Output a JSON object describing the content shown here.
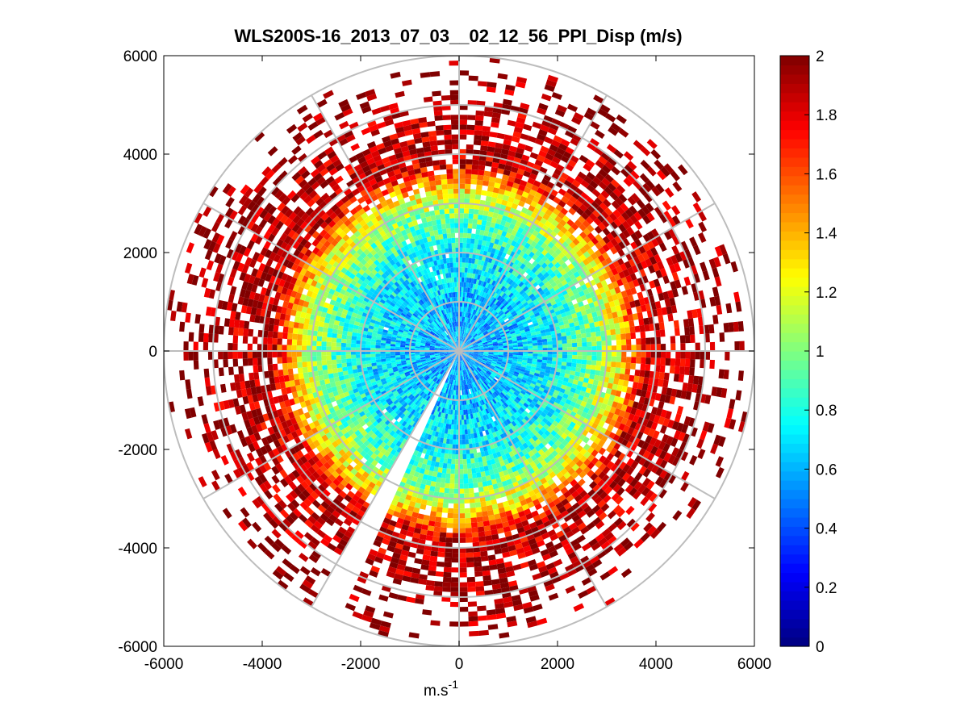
{
  "chart_data": {
    "type": "heatmap",
    "subtype": "polar-ppi",
    "title": "WLS200S-16_2013_07_03__02_12_56_PPI_Disp (m/s)",
    "xlabel": "m.s",
    "xlabel_superscript": "-1",
    "ylabel": "",
    "xlim": [
      -6000,
      6000
    ],
    "ylim": [
      -6000,
      6000
    ],
    "xticks": [
      -6000,
      -4000,
      -2000,
      0,
      2000,
      4000,
      6000
    ],
    "yticks": [
      6000,
      4000,
      2000,
      0,
      -2000,
      -4000,
      -6000
    ],
    "x_tick_labels": [
      "-6000",
      "-4000",
      "-2000",
      "0",
      "2000",
      "4000",
      "6000"
    ],
    "y_tick_labels": [
      "6000",
      "4000",
      "2000",
      "0",
      "-2000",
      "-4000",
      "-6000"
    ],
    "grid_ring_radii": [
      1000,
      2000,
      3000,
      4000,
      5000,
      6000
    ],
    "grid_spoke_step_deg": 30,
    "max_range": 6000,
    "range_gate": 100,
    "azimuth_step_deg": 2,
    "radial_profile": [
      {
        "range": 0,
        "value": 0.55
      },
      {
        "range": 1000,
        "value": 0.62
      },
      {
        "range": 2000,
        "value": 0.75
      },
      {
        "range": 2800,
        "value": 1.0
      },
      {
        "range": 3300,
        "value": 1.3
      },
      {
        "range": 3800,
        "value": 1.85
      },
      {
        "range": 6000,
        "value": 2.0
      }
    ],
    "data_availability": [
      {
        "range": 0,
        "fraction": 1.0
      },
      {
        "range": 3000,
        "fraction": 0.98
      },
      {
        "range": 4000,
        "fraction": 0.85
      },
      {
        "range": 5000,
        "fraction": 0.5
      },
      {
        "range": 6000,
        "fraction": 0.05
      }
    ],
    "missing_azimuth_sectors_deg": [
      [
        203,
        209
      ]
    ],
    "colorbar": {
      "min": 0,
      "max": 2,
      "colormap": "jet",
      "ticks": [
        2,
        1.8,
        1.6,
        1.4,
        1.2,
        1,
        0.8,
        0.6,
        0.4,
        0.2,
        0
      ],
      "tick_labels": [
        "2",
        "1.8",
        "1.6",
        "1.4",
        "1.2",
        "1",
        "0.8",
        "0.6",
        "0.4",
        "0.2",
        "0"
      ]
    }
  }
}
